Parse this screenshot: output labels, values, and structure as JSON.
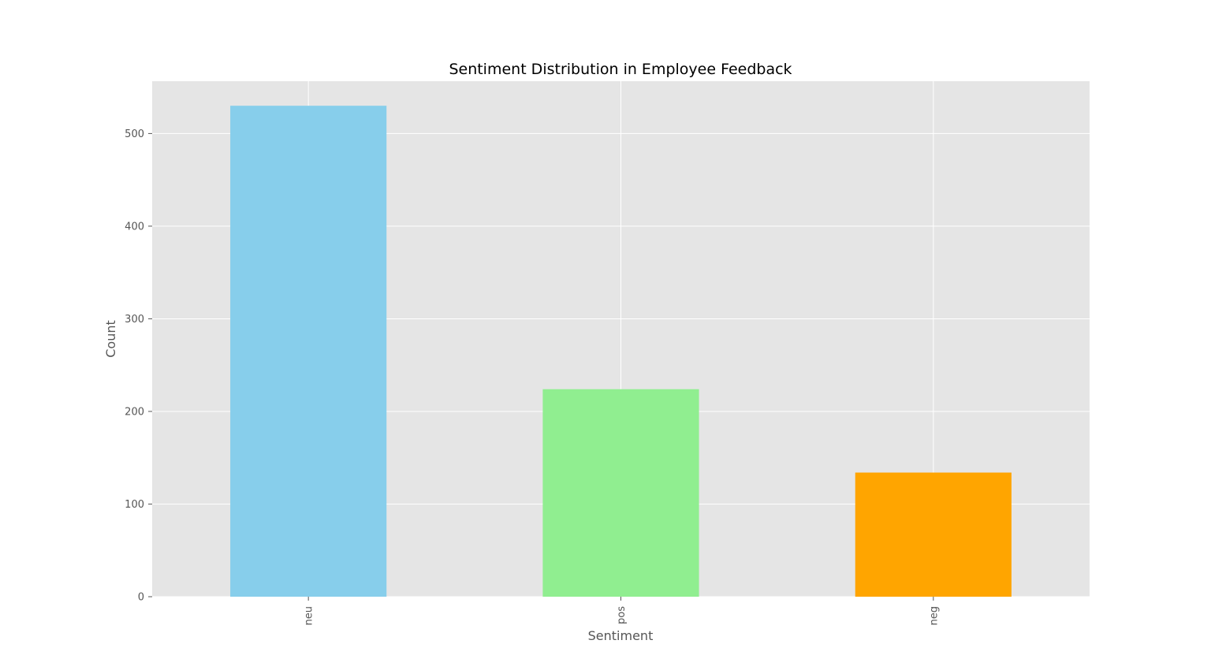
{
  "chart_data": {
    "type": "bar",
    "title": "Sentiment Distribution in Employee Feedback",
    "xlabel": "Sentiment",
    "ylabel": "Count",
    "categories": [
      "neu",
      "pos",
      "neg"
    ],
    "values": [
      530,
      224,
      134
    ],
    "colors": [
      "#87CEEB",
      "#90EE90",
      "#FFA500"
    ],
    "yticks": [
      0,
      100,
      200,
      300,
      400,
      500
    ],
    "ytick_labels": [
      "0",
      "100",
      "200",
      "300",
      "400",
      "500"
    ],
    "ylim": [
      0,
      556.5
    ],
    "grid": true,
    "style": {
      "plot_background": "#E5E5E5",
      "grid_color": "#FFFFFF",
      "text_color": "#555555"
    }
  }
}
